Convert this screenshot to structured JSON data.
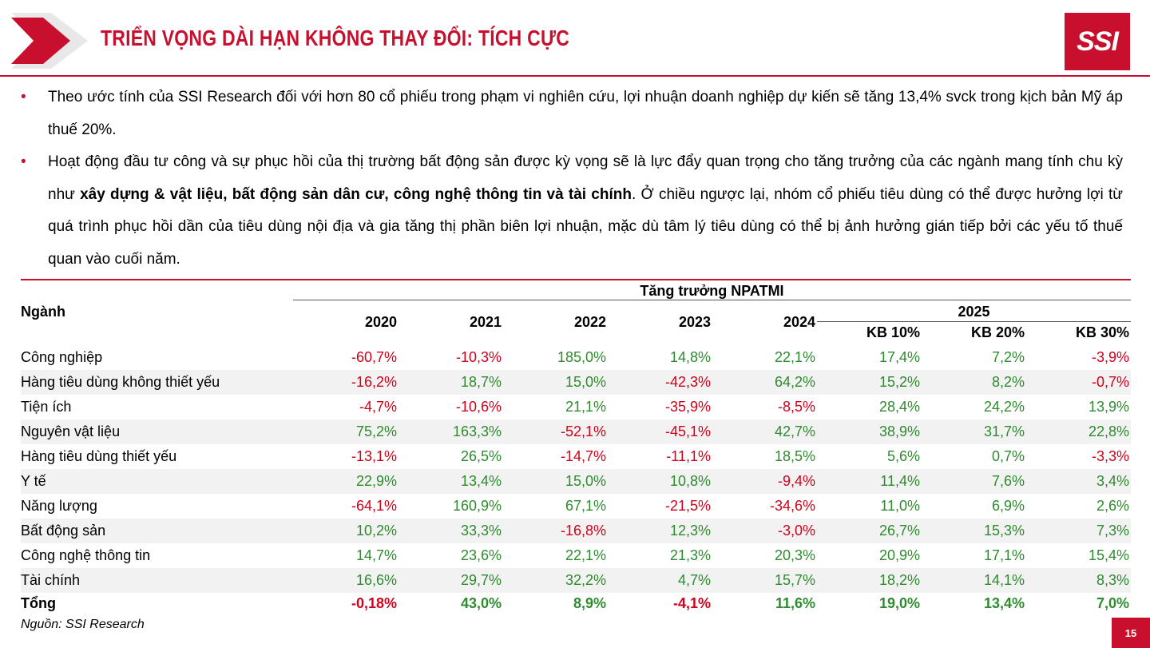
{
  "header": {
    "title": "TRIỂN VỌNG DÀI HẠN KHÔNG THAY ĐỔI: TÍCH CỰC",
    "logo_text": "SSI",
    "accent_color": "#c8102e"
  },
  "bullets": [
    {
      "before": "Theo ước tính của SSI Research đối với hơn 80 cổ phiếu trong phạm vi nghiên cứu, lợi nhuận doanh nghiệp dự kiến sẽ tăng 13,4% svck trong kịch bản Mỹ áp thuế 20%.",
      "bold": "",
      "after": ""
    },
    {
      "before": "Hoạt động đầu tư công và sự phục hồi của thị trường bất động sản được kỳ vọng sẽ là lực đẩy quan trọng cho tăng trưởng của các ngành mang tính chu kỳ như ",
      "bold": "xây dựng & vật liệu, bất động sản dân cư, công nghệ thông tin và tài chính",
      "after": ". Ở chiều ngược lại, nhóm cổ phiếu tiêu dùng có thể được hưởng lợi từ quá trình phục hồi dần của tiêu dùng nội địa và gia tăng thị phần biên lợi nhuận, mặc dù tâm lý tiêu dùng có thể bị ảnh hưởng gián tiếp bởi các yếu tố thuế quan vào cuối năm."
    }
  ],
  "table": {
    "sector_header": "Ngành",
    "group_header": "Tăng trưởng NPATMI",
    "year_2025": "2025",
    "columns": [
      "2020",
      "2021",
      "2022",
      "2023",
      "2024",
      "KB 10%",
      "KB 20%",
      "KB 30%"
    ],
    "rows": [
      {
        "label": "Công nghiệp",
        "values": [
          "-60,7%",
          "-10,3%",
          "185,0%",
          "14,8%",
          "22,1%",
          "17,4%",
          "7,2%",
          "-3,9%"
        ]
      },
      {
        "label": "Hàng tiêu dùng không thiết yếu",
        "values": [
          "-16,2%",
          "18,7%",
          "15,0%",
          "-42,3%",
          "64,2%",
          "15,2%",
          "8,2%",
          "-0,7%"
        ]
      },
      {
        "label": "Tiện ích",
        "values": [
          "-4,7%",
          "-10,6%",
          "21,1%",
          "-35,9%",
          "-8,5%",
          "28,4%",
          "24,2%",
          "13,9%"
        ]
      },
      {
        "label": "Nguyên vật liệu",
        "values": [
          "75,2%",
          "163,3%",
          "-52,1%",
          "-45,1%",
          "42,7%",
          "38,9%",
          "31,7%",
          "22,8%"
        ]
      },
      {
        "label": "Hàng tiêu dùng thiết yếu",
        "values": [
          "-13,1%",
          "26,5%",
          "-14,7%",
          "-11,1%",
          "18,5%",
          "5,6%",
          "0,7%",
          "-3,3%"
        ]
      },
      {
        "label": "Y tế",
        "values": [
          "22,9%",
          "13,4%",
          "15,0%",
          "10,8%",
          "-9,4%",
          "11,4%",
          "7,6%",
          "3,4%"
        ]
      },
      {
        "label": "Năng lượng",
        "values": [
          "-64,1%",
          "160,9%",
          "67,1%",
          "-21,5%",
          "-34,6%",
          "11,0%",
          "6,9%",
          "2,6%"
        ]
      },
      {
        "label": "Bất động sản",
        "values": [
          "10,2%",
          "33,3%",
          "-16,8%",
          "12,3%",
          "-3,0%",
          "26,7%",
          "15,3%",
          "7,3%"
        ]
      },
      {
        "label": "Công nghệ thông tin",
        "values": [
          "14,7%",
          "23,6%",
          "22,1%",
          "21,3%",
          "20,3%",
          "20,9%",
          "17,1%",
          "15,4%"
        ]
      },
      {
        "label": "Tài chính",
        "values": [
          "16,6%",
          "29,7%",
          "32,2%",
          "4,7%",
          "15,7%",
          "18,2%",
          "14,1%",
          "8,3%"
        ]
      }
    ],
    "total": {
      "label": "Tổng",
      "values": [
        "-0,18%",
        "43,0%",
        "8,9%",
        "-4,1%",
        "11,6%",
        "19,0%",
        "13,4%",
        "7,0%"
      ]
    },
    "positive_color": "#2e8b2e",
    "negative_color": "#d0021b"
  },
  "footer": {
    "source": "Nguồn: SSI Research",
    "page_number": "15"
  }
}
